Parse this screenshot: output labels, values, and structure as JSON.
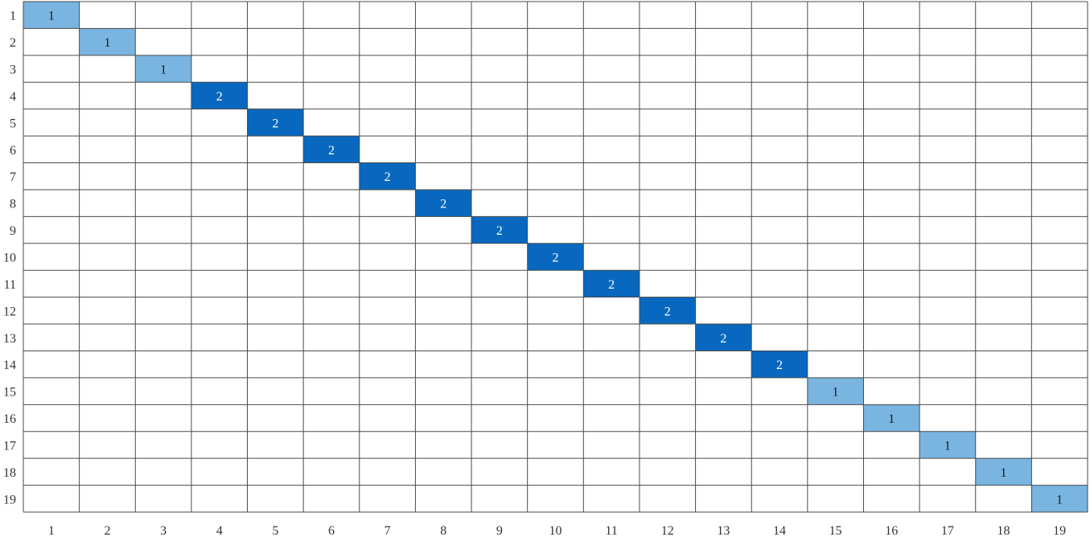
{
  "chart_data": {
    "type": "heatmap",
    "title": "",
    "xlabel": "",
    "ylabel": "",
    "x_categories": [
      "1",
      "2",
      "3",
      "4",
      "5",
      "6",
      "7",
      "8",
      "9",
      "10",
      "11",
      "12",
      "13",
      "14",
      "15",
      "16",
      "17",
      "18",
      "19"
    ],
    "y_categories": [
      "1",
      "2",
      "3",
      "4",
      "5",
      "6",
      "7",
      "8",
      "9",
      "10",
      "11",
      "12",
      "13",
      "14",
      "15",
      "16",
      "17",
      "18",
      "19"
    ],
    "cells": [
      {
        "x": "1",
        "y": "1",
        "value": 1
      },
      {
        "x": "2",
        "y": "2",
        "value": 1
      },
      {
        "x": "3",
        "y": "3",
        "value": 1
      },
      {
        "x": "4",
        "y": "4",
        "value": 2
      },
      {
        "x": "5",
        "y": "5",
        "value": 2
      },
      {
        "x": "6",
        "y": "6",
        "value": 2
      },
      {
        "x": "7",
        "y": "7",
        "value": 2
      },
      {
        "x": "8",
        "y": "8",
        "value": 2
      },
      {
        "x": "9",
        "y": "9",
        "value": 2
      },
      {
        "x": "10",
        "y": "10",
        "value": 2
      },
      {
        "x": "11",
        "y": "11",
        "value": 2
      },
      {
        "x": "12",
        "y": "12",
        "value": 2
      },
      {
        "x": "13",
        "y": "13",
        "value": 2
      },
      {
        "x": "14",
        "y": "14",
        "value": 2
      },
      {
        "x": "15",
        "y": "15",
        "value": 1
      },
      {
        "x": "16",
        "y": "16",
        "value": 1
      },
      {
        "x": "17",
        "y": "17",
        "value": 1
      },
      {
        "x": "18",
        "y": "18",
        "value": 1
      },
      {
        "x": "19",
        "y": "19",
        "value": 1
      }
    ],
    "colors": {
      "value_1": "#7ab4e0",
      "value_2": "#0868bf",
      "text_value_1": "#1a1a1a",
      "text_value_2": "#ffffff",
      "grid": "#4a4a4a",
      "background": "#ffffff"
    },
    "grid": true,
    "legend": "none"
  }
}
